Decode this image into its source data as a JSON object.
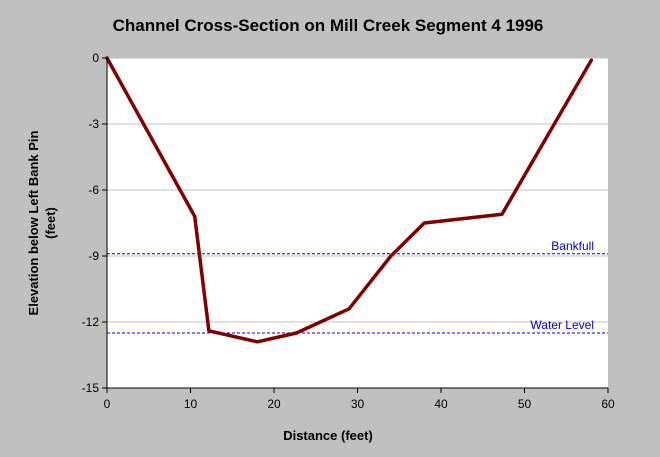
{
  "chart_data": {
    "type": "line",
    "title": "Channel Cross-Section on Mill Creek Segment 4 1996",
    "xlabel": "Distance (feet)",
    "ylabel_line1": "Elevation below Left Bank Pin",
    "ylabel_line2": "(feet)",
    "xlim": [
      0,
      60
    ],
    "ylim": [
      -15,
      0
    ],
    "xticks": [
      0,
      10,
      20,
      30,
      40,
      50,
      60
    ],
    "yticks": [
      0,
      -3,
      -6,
      -9,
      -12,
      -15
    ],
    "grid": true,
    "series": [
      {
        "color": "#800000",
        "x": [
          0,
          10.5,
          12.2,
          18,
          22.7,
          29,
          34,
          38,
          47.3,
          58
        ],
        "y": [
          0,
          -7.2,
          -12.4,
          -12.9,
          -12.5,
          -11.4,
          -9,
          -7.5,
          -7.1,
          -0.1
        ]
      }
    ],
    "reference_lines": [
      {
        "label": "Bankfull",
        "y": -8.9,
        "color": "#0000cc"
      },
      {
        "label": "Water Level",
        "y": -12.5,
        "color": "#0000cc"
      }
    ]
  }
}
